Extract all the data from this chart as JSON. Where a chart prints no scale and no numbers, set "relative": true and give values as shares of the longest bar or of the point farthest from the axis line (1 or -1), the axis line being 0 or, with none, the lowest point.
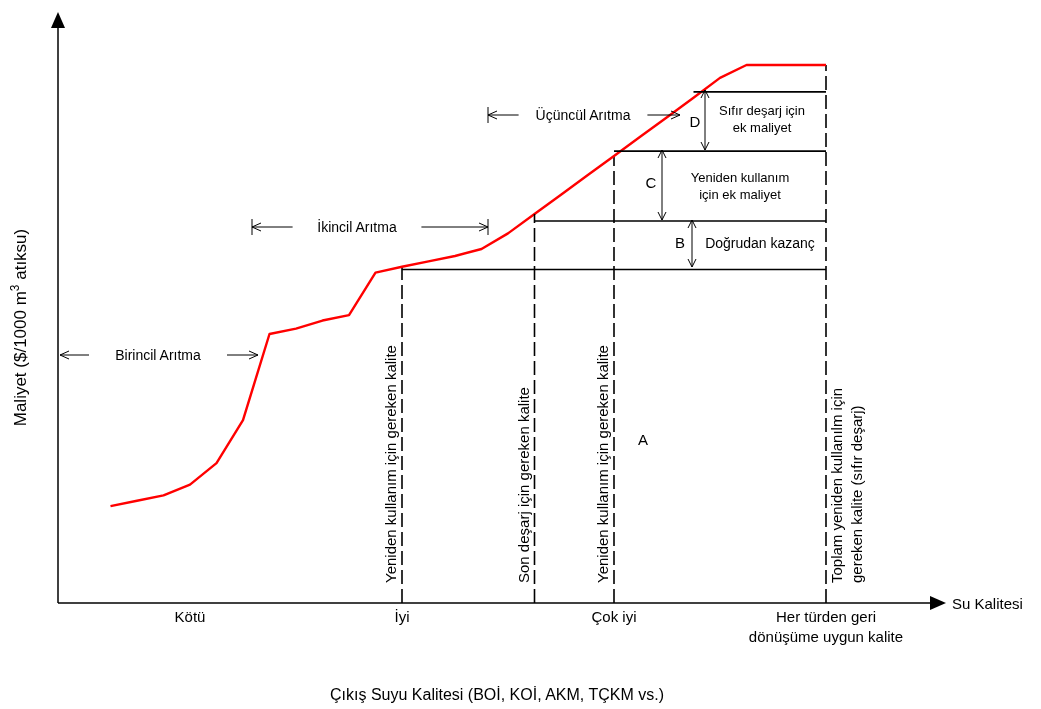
{
  "chart_data": {
    "type": "line",
    "relative": true,
    "xlabel": "Su Kalitesi",
    "ylabel": "Maliyet ($/1000 m$^{3}$ atıksu)",
    "categories": [
      null,
      null,
      null,
      null,
      "Kötü",
      null,
      null,
      null,
      null,
      null,
      null,
      null,
      "İyi",
      null,
      null,
      null,
      null,
      null,
      null,
      null,
      "Çok iyi",
      null,
      null,
      null,
      null,
      null,
      null,
      null,
      "Her türden geri\ndönüşüme uygun kalite",
      null,
      null,
      null,
      null
    ],
    "series": [
      {
        "color": "#ff0000",
        "values": [
          null,
          0.18,
          0.19,
          0.2,
          0.22,
          0.26,
          0.34,
          0.5,
          0.51,
          0.525,
          0.535,
          0.614,
          0.625,
          0.635,
          0.645,
          0.658,
          0.687,
          0.723,
          0.759,
          0.795,
          0.831,
          0.867,
          0.903,
          0.939,
          0.976,
          1.0,
          1.0,
          1.0,
          1.0,
          null,
          null,
          null,
          null
        ]
      },
      {
        "color": "#000000",
        "values": [
          null,
          null,
          null,
          null,
          null,
          null,
          null,
          null,
          null,
          null,
          null,
          null,
          0.62,
          0.62,
          0.62,
          0.62,
          0.62,
          0.62,
          0.62,
          0.62,
          0.62,
          0.62,
          0.62,
          0.62,
          0.62,
          0.62,
          0.62,
          0.62,
          0.62,
          null,
          null,
          null,
          null
        ]
      },
      {
        "color": "#000000",
        "values": [
          null,
          null,
          null,
          null,
          null,
          null,
          null,
          null,
          null,
          null,
          null,
          null,
          null,
          null,
          null,
          null,
          null,
          0.71,
          0.71,
          0.71,
          0.71,
          0.71,
          0.71,
          0.71,
          0.71,
          0.71,
          0.71,
          0.71,
          0.71,
          null,
          null,
          null,
          null
        ]
      },
      {
        "color": "#000000",
        "values": [
          null,
          null,
          null,
          null,
          null,
          null,
          null,
          null,
          null,
          null,
          null,
          null,
          null,
          null,
          null,
          null,
          null,
          null,
          null,
          null,
          0.84,
          0.84,
          0.84,
          0.84,
          0.84,
          0.84,
          0.84,
          0.84,
          0.84,
          null,
          null,
          null,
          null
        ]
      },
      {
        "color": "#000000",
        "values": [
          null,
          null,
          null,
          null,
          null,
          null,
          null,
          null,
          null,
          null,
          null,
          null,
          null,
          null,
          null,
          null,
          null,
          null,
          null,
          null,
          null,
          null,
          null,
          0.95,
          0.95,
          0.95,
          0.95,
          0.95,
          0.95,
          null,
          null,
          null,
          null
        ]
      }
    ],
    "ref_lines": [
      {
        "axis": "x",
        "value": "İyi",
        "label": "Yeniden kullanım için gereken kalite",
        "color": "#000000",
        "line_style": "dashed"
      },
      {
        "axis": "x",
        "value": "Çok iyi",
        "label": "Yeniden kullanım için gereken kalite",
        "color": "#000000",
        "line_style": "dashed"
      },
      {
        "axis": "x",
        "value": "Her türden geri\ndönüşüme uygun kalite",
        "label": "Toplam yeniden kullanılm için\ngereken kalite (sıfır deşarj)",
        "color": "#000000",
        "line_style": "dashed"
      }
    ],
    "annotations": [
      "Birincil Arıtma",
      "İkincil Arıtma",
      "Üçüncül Arıtma",
      "A",
      "B",
      "C",
      "D",
      "Doğrudan kazanç",
      "Yeniden kullanım\niçin ek maliyet",
      "Sıfır deşarj için\nek maliyet",
      "Çıkış Suyu Kalitesi (BOİ, KOİ, AKM, TÇKM vs.)",
      "Son deşarj için gereken kalite"
    ]
  }
}
